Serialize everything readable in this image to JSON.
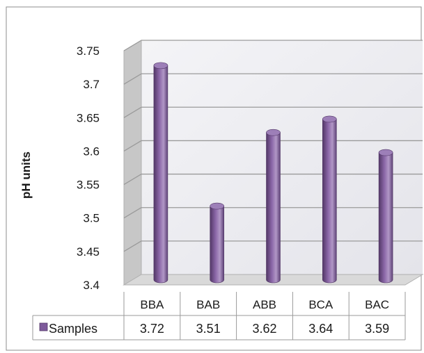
{
  "chart_data": {
    "type": "bar",
    "categories": [
      "BBA",
      "BAB",
      "ABB",
      "BCA",
      "BAC"
    ],
    "series": [
      {
        "name": "Samples",
        "values": [
          3.72,
          3.51,
          3.62,
          3.64,
          3.59
        ]
      }
    ],
    "value_labels": [
      "3.72",
      "3.51",
      "3.62",
      "3.64",
      "3.59"
    ],
    "ylabel": "pH units",
    "ylim": [
      3.4,
      3.75
    ],
    "y_ticks": [
      "3.4",
      "3.45",
      "3.5",
      "3.55",
      "3.6",
      "3.65",
      "3.7",
      "3.75"
    ],
    "bar_shape": "cylinder",
    "data_table": true,
    "grid": true,
    "colors": {
      "bar": "#7e5a9b",
      "bar_dark": "#523766",
      "bar_light": "#b197c6",
      "bar_top": "#9d7fb8",
      "wall": "#eeeef2",
      "side_wall": "#c7c7c7",
      "floor": "#d9d9d9",
      "grid": "#9a9a9a",
      "table_border": "#9a9a9a",
      "frame": "#8c8c8c"
    }
  }
}
